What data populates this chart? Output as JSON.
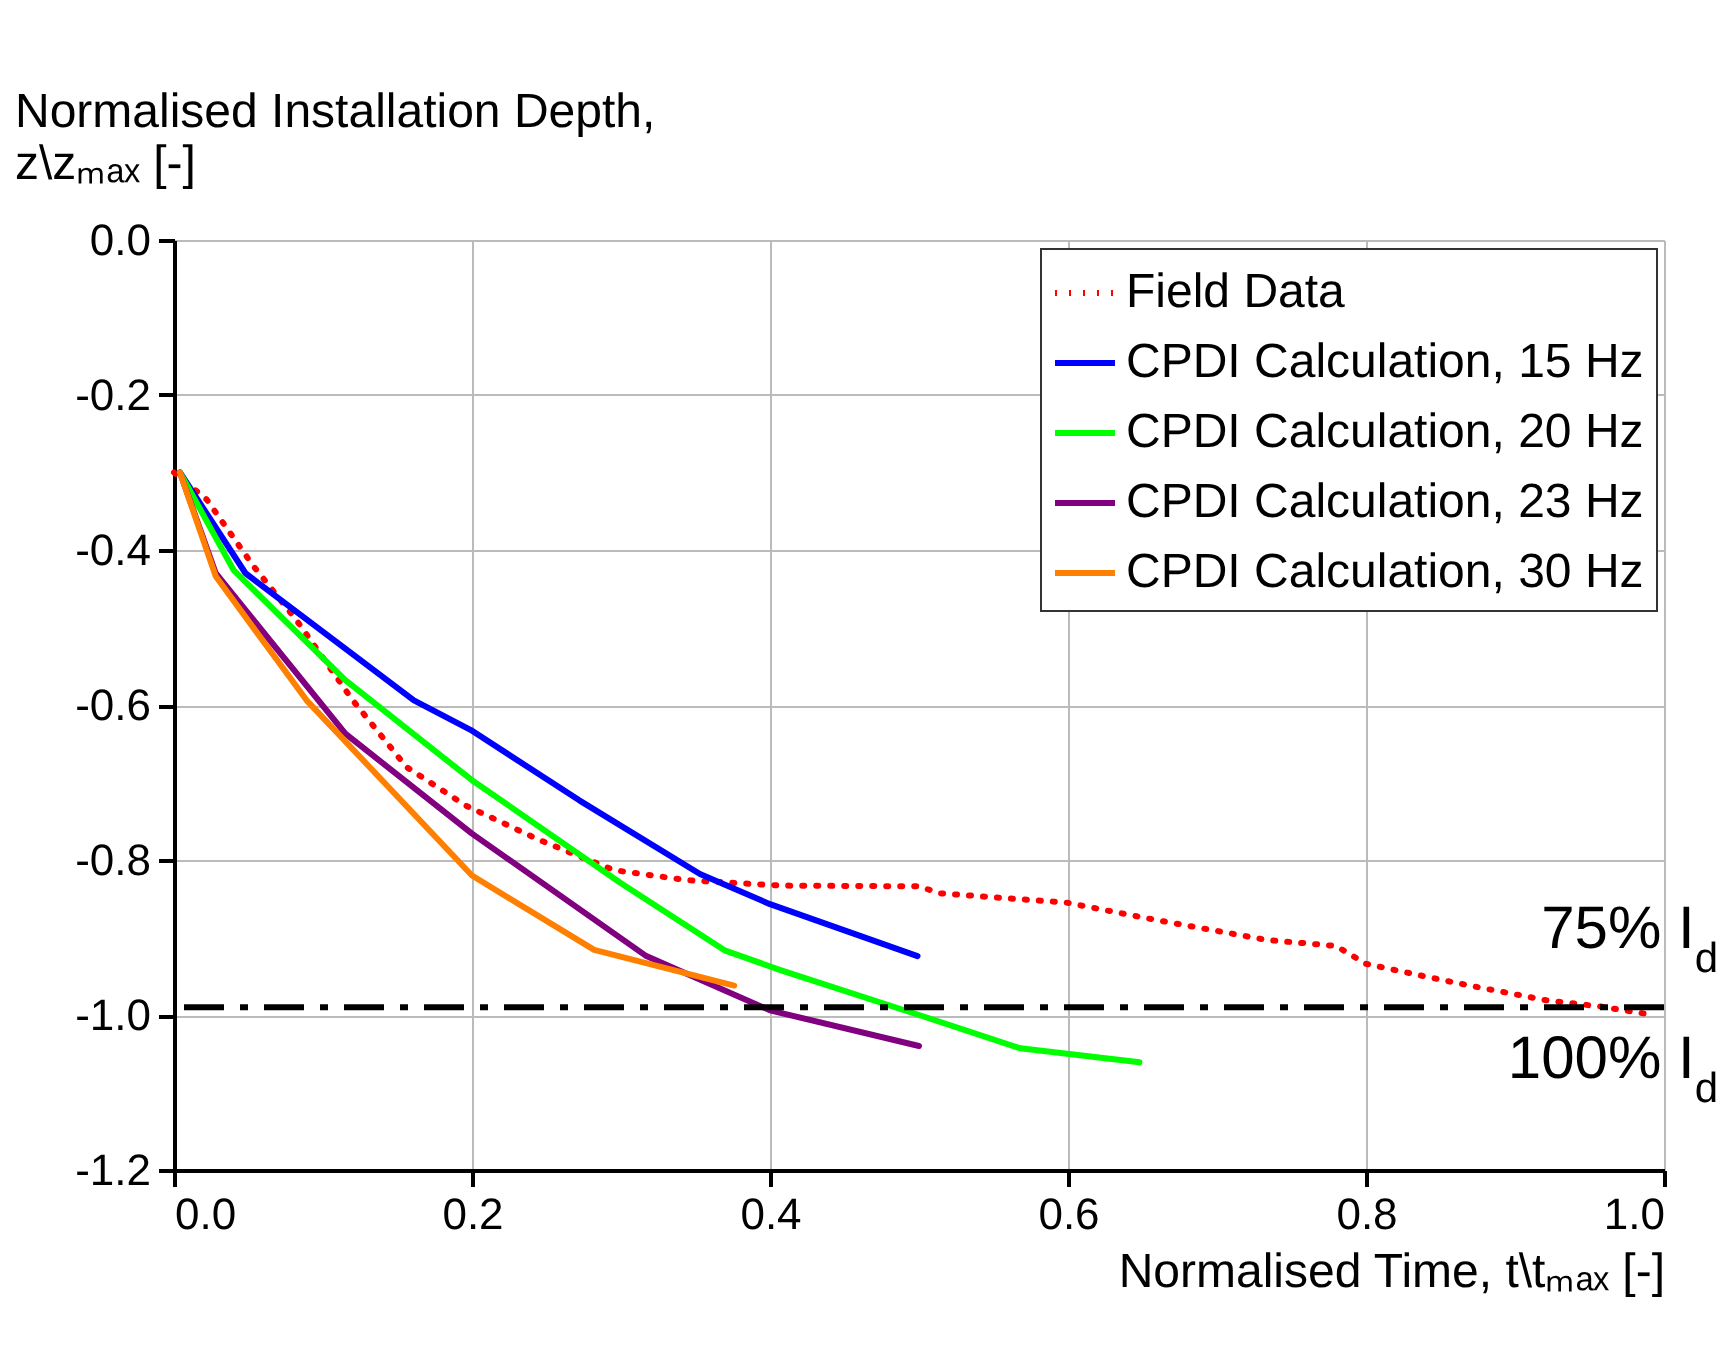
{
  "chart_data": {
    "type": "line",
    "xlabel": "Normalised Time, t\\tₘₐₓ [-]",
    "ylabel": "Normalised Installation Depth, z\\zₘₐₓ [-]",
    "xlim": [
      0,
      1.0
    ],
    "xticks": [
      {
        "value": 0,
        "label": "0.0"
      },
      0.2,
      0.4,
      0.6,
      0.8,
      {
        "value": 1,
        "label": "1.0"
      }
    ],
    "ylim": [
      -1.2,
      0
    ],
    "yticks": [
      {
        "value": -1.2,
        "label": "-1.2"
      },
      {
        "value": -1,
        "label": "-1.0"
      },
      -0.8,
      -0.6,
      -0.4,
      -0.2,
      {
        "value": 0,
        "label": "0.0"
      }
    ],
    "grid": true,
    "legend": "top right",
    "marker": "none",
    "series": [
      {
        "name": "Field Data",
        "color": "#ff0000",
        "line_style": "dotted",
        "x": [
          0,
          0.022,
          0.053,
          0.082,
          0.12,
          0.156,
          0.196,
          0.245,
          0.295,
          0.344,
          0.407,
          0.5,
          0.514,
          0.599,
          0.658,
          0.733,
          0.78,
          0.8,
          0.839,
          0.872,
          0.921,
          0.957,
          0.993
        ],
        "values": [
          -0.3,
          -0.335,
          -0.42,
          -0.49,
          -0.594,
          -0.68,
          -0.73,
          -0.774,
          -0.813,
          -0.826,
          -0.833,
          -0.834,
          -0.843,
          -0.855,
          -0.877,
          -0.903,
          -0.911,
          -0.934,
          -0.95,
          -0.963,
          -0.981,
          -0.989,
          -1.0
        ]
      },
      {
        "name": "CPDI Calculation, 15 Hz",
        "color": "#0000ff",
        "line_style": "solid",
        "x": [
          0.004,
          0.048,
          0.161,
          0.199,
          0.272,
          0.353,
          0.4,
          0.499
        ],
        "values": [
          -0.3,
          -0.43,
          -0.594,
          -0.632,
          -0.723,
          -0.818,
          -0.857,
          -0.924
        ]
      },
      {
        "name": "CPDI Calculation, 20 Hz",
        "color": "#00ff00",
        "line_style": "solid",
        "x": [
          0.004,
          0.04,
          0.115,
          0.2,
          0.3,
          0.37,
          0.407,
          0.5,
          0.568,
          0.648
        ],
        "values": [
          -0.3,
          -0.426,
          -0.568,
          -0.697,
          -0.83,
          -0.917,
          -0.942,
          -1.0,
          -1.043,
          -1.061
        ]
      },
      {
        "name": "CPDI Calculation, 23 Hz",
        "color": "#800080",
        "line_style": "solid",
        "x": [
          0.004,
          0.028,
          0.115,
          0.2,
          0.317,
          0.4,
          0.5
        ],
        "values": [
          -0.3,
          -0.43,
          -0.637,
          -0.766,
          -0.924,
          -0.994,
          -1.04
        ]
      },
      {
        "name": "CPDI Calculation, 30 Hz",
        "color": "#ff8000",
        "line_style": "solid",
        "x": [
          0.004,
          0.028,
          0.089,
          0.2,
          0.282,
          0.376
        ],
        "values": [
          -0.3,
          -0.434,
          -0.594,
          -0.82,
          -0.916,
          -0.962
        ]
      }
    ],
    "ref_lines": [
      {
        "axis": "y",
        "value": -0.99,
        "color": "#000000",
        "line_style": "dashdot"
      }
    ],
    "annotations": [
      "75% I$_{d}$",
      "100% I$_{d}$"
    ]
  }
}
